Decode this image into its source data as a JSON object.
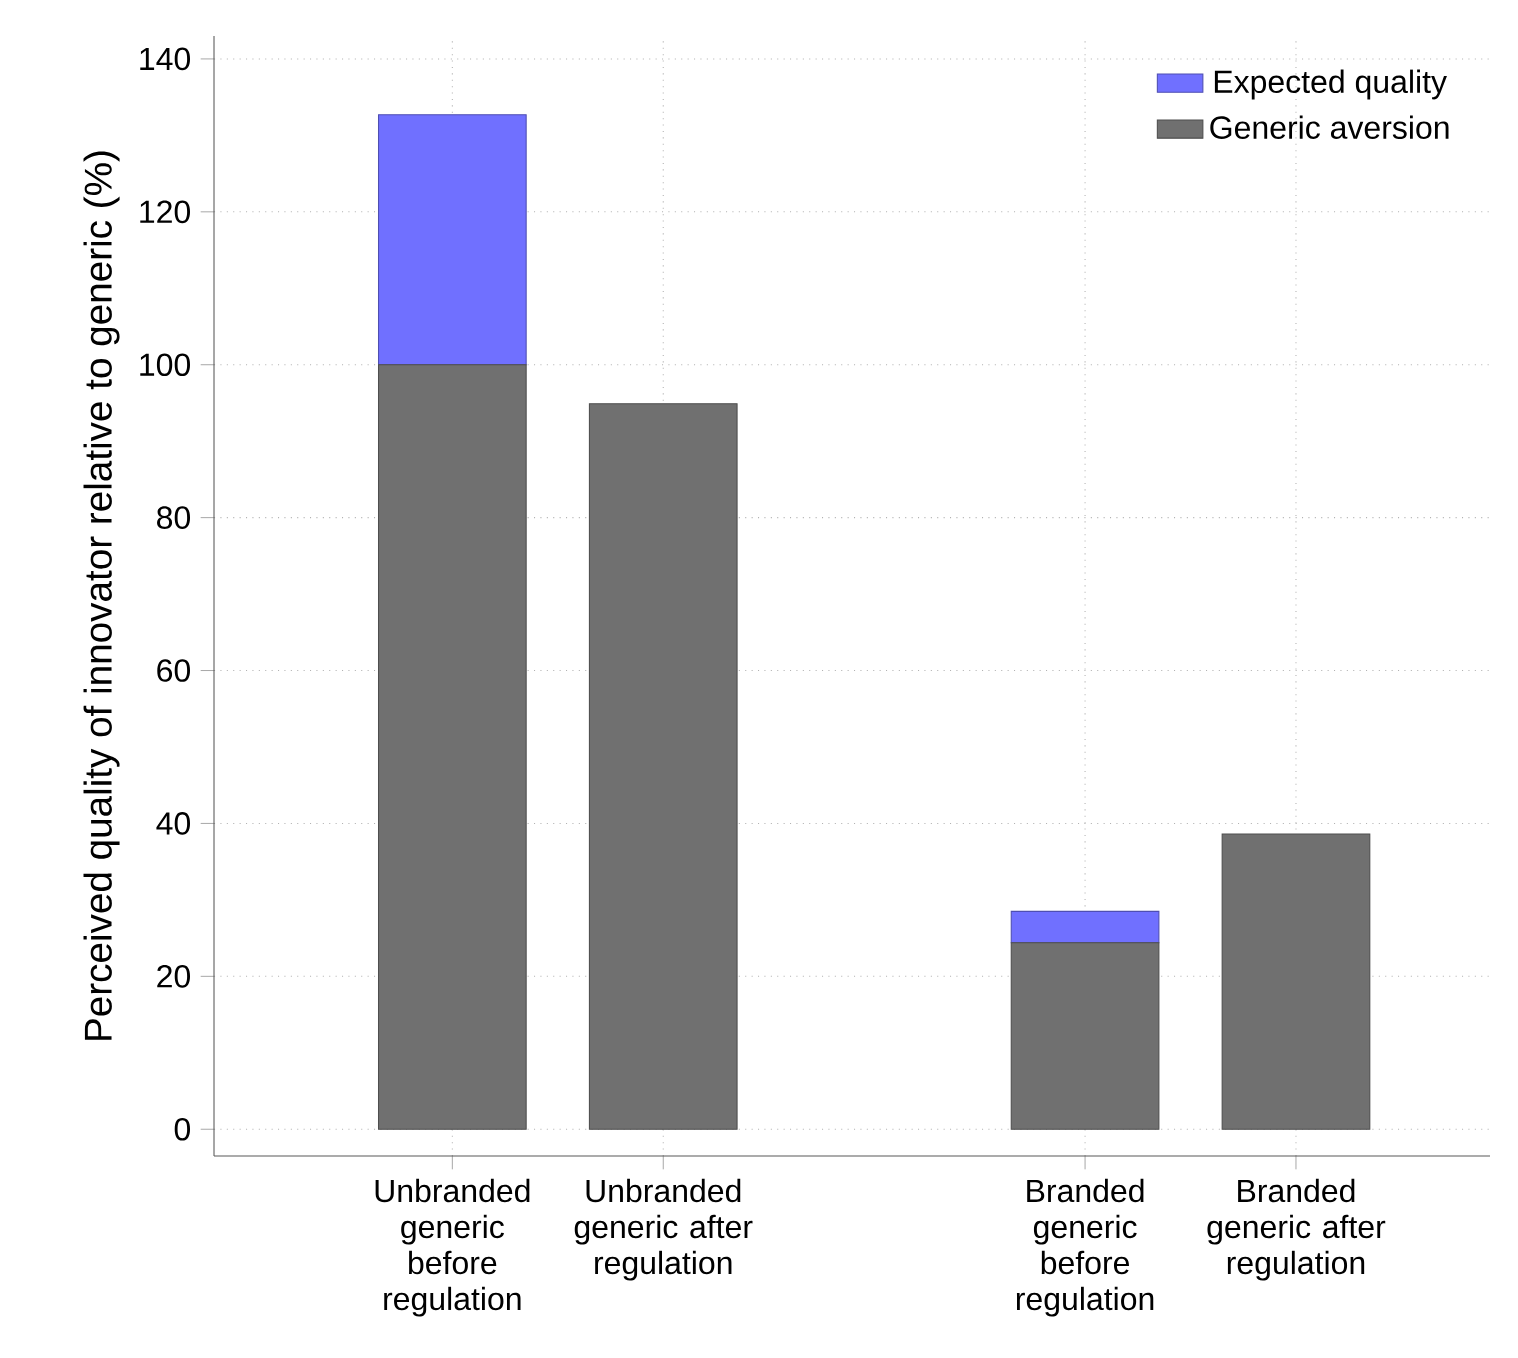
{
  "chart_data": {
    "type": "bar",
    "stacked": true,
    "ylabel": "Perceived quality of innovator relative to generic (%)",
    "categories": [
      "Unbranded generic before regulation",
      "Unbranded generic after regulation",
      null,
      "Branded generic before regulation",
      "Branded generic after regulation"
    ],
    "series": [
      {
        "name": "Generic aversion",
        "color": "#707070",
        "values": [
          100,
          94.9,
          null,
          24.4,
          38.6
        ]
      },
      {
        "name": "Expected quality",
        "color": "#7070ff",
        "values": [
          32.7,
          null,
          null,
          4.1,
          null
        ]
      }
    ],
    "ylim": [
      -3.5,
      143
    ],
    "yticks": [
      0,
      20,
      40,
      60,
      80,
      100,
      120,
      140
    ],
    "grid": true,
    "legend": "top right"
  }
}
